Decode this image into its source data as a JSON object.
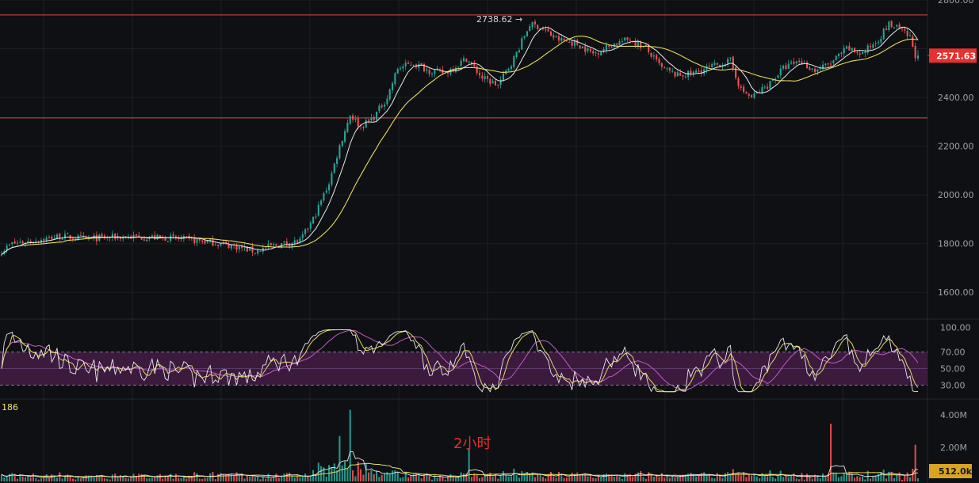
{
  "colors": {
    "background": "#0f1013",
    "grid": "#1d1f24",
    "up": "#26a69a",
    "down": "#ef5350",
    "ma_fast": "#e8e8e8",
    "ma_slow": "#e6d95a",
    "rsi_band": "#3b1a3e",
    "rsi_fast": "#e8e8e8",
    "rsi_mid": "#e6d95a",
    "rsi_slow": "#c05ac8",
    "hline": "#d94a4a",
    "overlay_text": "#e5312f",
    "price_badge": "#e5312f",
    "volume_badge": "#d9a422"
  },
  "overlay": {
    "label": "2小时"
  },
  "indicator_value": "186",
  "chart_data": [
    {
      "type": "candlestick",
      "panel": "price",
      "ylim": [
        1500,
        2800
      ],
      "y_ticks": [
        "2800.00",
        "2400.00",
        "2200.00",
        "2000.00",
        "1800.00",
        "1600.00"
      ],
      "current_price": "2571.63",
      "peak_label": "2738.62",
      "horizontal_levels": [
        2738.62,
        2316
      ],
      "path_points": [
        [
          0,
          1770
        ],
        [
          4,
          1800
        ],
        [
          12,
          1812
        ],
        [
          22,
          1830
        ],
        [
          32,
          1820
        ],
        [
          45,
          1828
        ],
        [
          60,
          1825
        ],
        [
          72,
          1815
        ],
        [
          80,
          1805
        ],
        [
          88,
          1790
        ],
        [
          96,
          1768
        ],
        [
          102,
          1790
        ],
        [
          108,
          1802
        ],
        [
          113,
          1810
        ],
        [
          118,
          1900
        ],
        [
          124,
          2050
        ],
        [
          128,
          2200
        ],
        [
          132,
          2330
        ],
        [
          136,
          2280
        ],
        [
          141,
          2320
        ],
        [
          146,
          2400
        ],
        [
          150,
          2520
        ],
        [
          156,
          2540
        ],
        [
          162,
          2510
        ],
        [
          168,
          2500
        ],
        [
          176,
          2560
        ],
        [
          182,
          2480
        ],
        [
          188,
          2450
        ],
        [
          194,
          2560
        ],
        [
          200,
          2700
        ],
        [
          204,
          2690
        ],
        [
          210,
          2640
        ],
        [
          218,
          2620
        ],
        [
          224,
          2580
        ],
        [
          232,
          2620
        ],
        [
          238,
          2640
        ],
        [
          244,
          2600
        ],
        [
          250,
          2520
        ],
        [
          256,
          2490
        ],
        [
          262,
          2500
        ],
        [
          270,
          2530
        ],
        [
          276,
          2550
        ],
        [
          280,
          2430
        ],
        [
          284,
          2400
        ],
        [
          290,
          2450
        ],
        [
          296,
          2520
        ],
        [
          302,
          2550
        ],
        [
          308,
          2510
        ],
        [
          314,
          2540
        ],
        [
          320,
          2600
        ],
        [
          326,
          2580
        ],
        [
          332,
          2640
        ],
        [
          336,
          2700
        ],
        [
          340,
          2680
        ],
        [
          344,
          2645
        ],
        [
          346,
          2575
        ],
        [
          347,
          2572
        ]
      ],
      "n_candles": 348,
      "ma_fast_window": 8,
      "ma_slow_window": 24
    },
    {
      "type": "line",
      "panel": "rsi",
      "ylim": [
        15,
        108
      ],
      "y_ticks": [
        "100.00",
        "70.00",
        "50.00",
        "30.00"
      ],
      "band": [
        30,
        70
      ]
    },
    {
      "type": "bar",
      "panel": "volume",
      "y_ticks": [
        "4.00M",
        "2.00M"
      ],
      "current_volume": "512.0k"
    }
  ]
}
